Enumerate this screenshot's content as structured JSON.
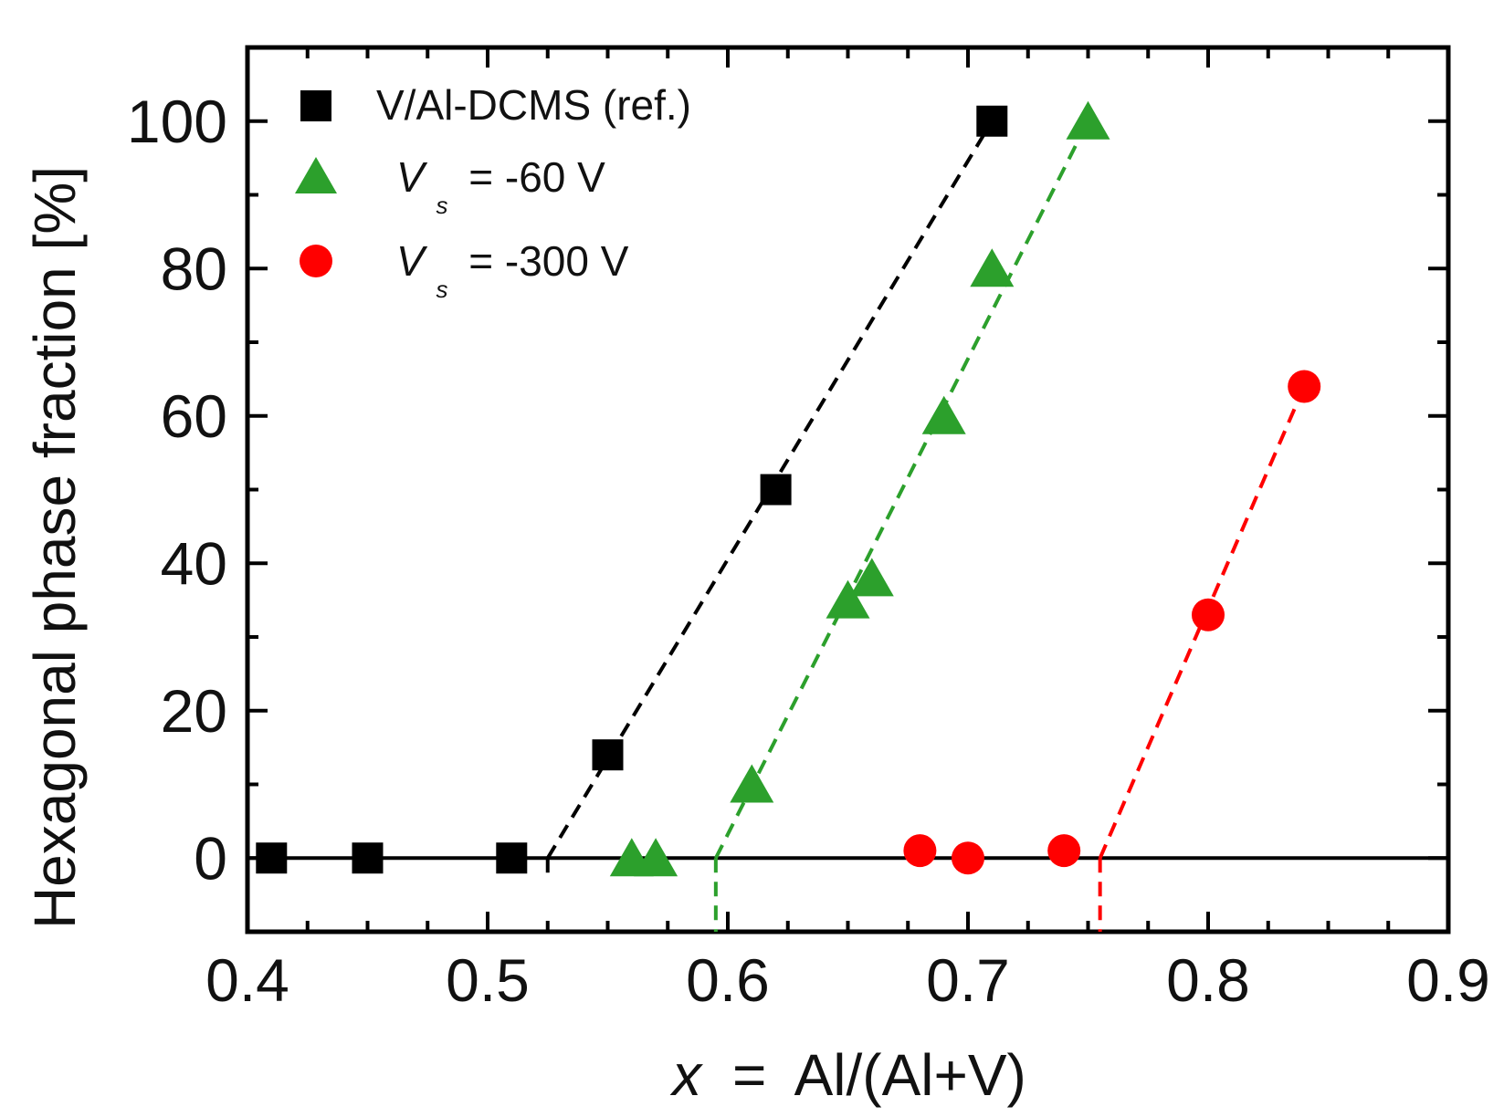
{
  "chart_data": {
    "type": "scatter",
    "xlabel": "Al/(Al+V)",
    "xlabel_var": "x",
    "xlabel_eq": "=",
    "ylabel": "Hexagonal phase fraction [%]",
    "xlim": [
      0.4,
      0.9
    ],
    "ylim": [
      -10,
      110
    ],
    "xticks": [
      0.4,
      0.5,
      0.6,
      0.7,
      0.8,
      0.9
    ],
    "xtick_labels": [
      "0.4",
      "0.5",
      "0.6",
      "0.7",
      "0.8",
      "0.9"
    ],
    "yticks": [
      0,
      20,
      40,
      60,
      80,
      100
    ],
    "ytick_labels": [
      "0",
      "20",
      "40",
      "60",
      "80",
      "100"
    ],
    "zero_line": true,
    "legend_position": "top-left",
    "series": [
      {
        "name": "V/Al-DCMS (ref.)",
        "legend": {
          "text": "V/Al-DCMS (ref.)"
        },
        "marker": "square",
        "color": "#000000",
        "x": [
          0.41,
          0.45,
          0.51,
          0.55,
          0.62,
          0.71
        ],
        "y": [
          0,
          0,
          0,
          14,
          50,
          100
        ],
        "fit": {
          "x": [
            0.525,
            0.71
          ],
          "y": [
            0,
            100
          ]
        }
      },
      {
        "name": "Vs = -60 V",
        "legend": {
          "var": "V",
          "sub": "s",
          "rest": "= -60 V"
        },
        "marker": "triangle",
        "color": "#2ca02c",
        "x": [
          0.56,
          0.57,
          0.61,
          0.65,
          0.66,
          0.69,
          0.71,
          0.75
        ],
        "y": [
          0,
          0,
          10,
          35,
          38,
          60,
          80,
          100
        ],
        "fit": {
          "x": [
            0.595,
            0.75
          ],
          "y": [
            0,
            100
          ]
        }
      },
      {
        "name": "Vs = -300 V",
        "legend": {
          "var": "V",
          "sub": "s",
          "rest": "= -300 V"
        },
        "marker": "circle",
        "color": "#ff0000",
        "x": [
          0.68,
          0.7,
          0.74,
          0.8,
          0.84
        ],
        "y": [
          1,
          0,
          1,
          33,
          64
        ],
        "fit": {
          "x": [
            0.755,
            0.84
          ],
          "y": [
            0,
            64
          ]
        }
      }
    ],
    "dashed_drop_lines": [
      {
        "series": "V/Al-DCMS (ref.)",
        "x": 0.525,
        "y_from": 0,
        "y_to": -3
      },
      {
        "series": "Vs = -60 V",
        "x": 0.595,
        "y_from": 0,
        "y_to": -10
      },
      {
        "series": "Vs = -300 V",
        "x": 0.755,
        "y_from": 0,
        "y_to": -10
      }
    ]
  }
}
